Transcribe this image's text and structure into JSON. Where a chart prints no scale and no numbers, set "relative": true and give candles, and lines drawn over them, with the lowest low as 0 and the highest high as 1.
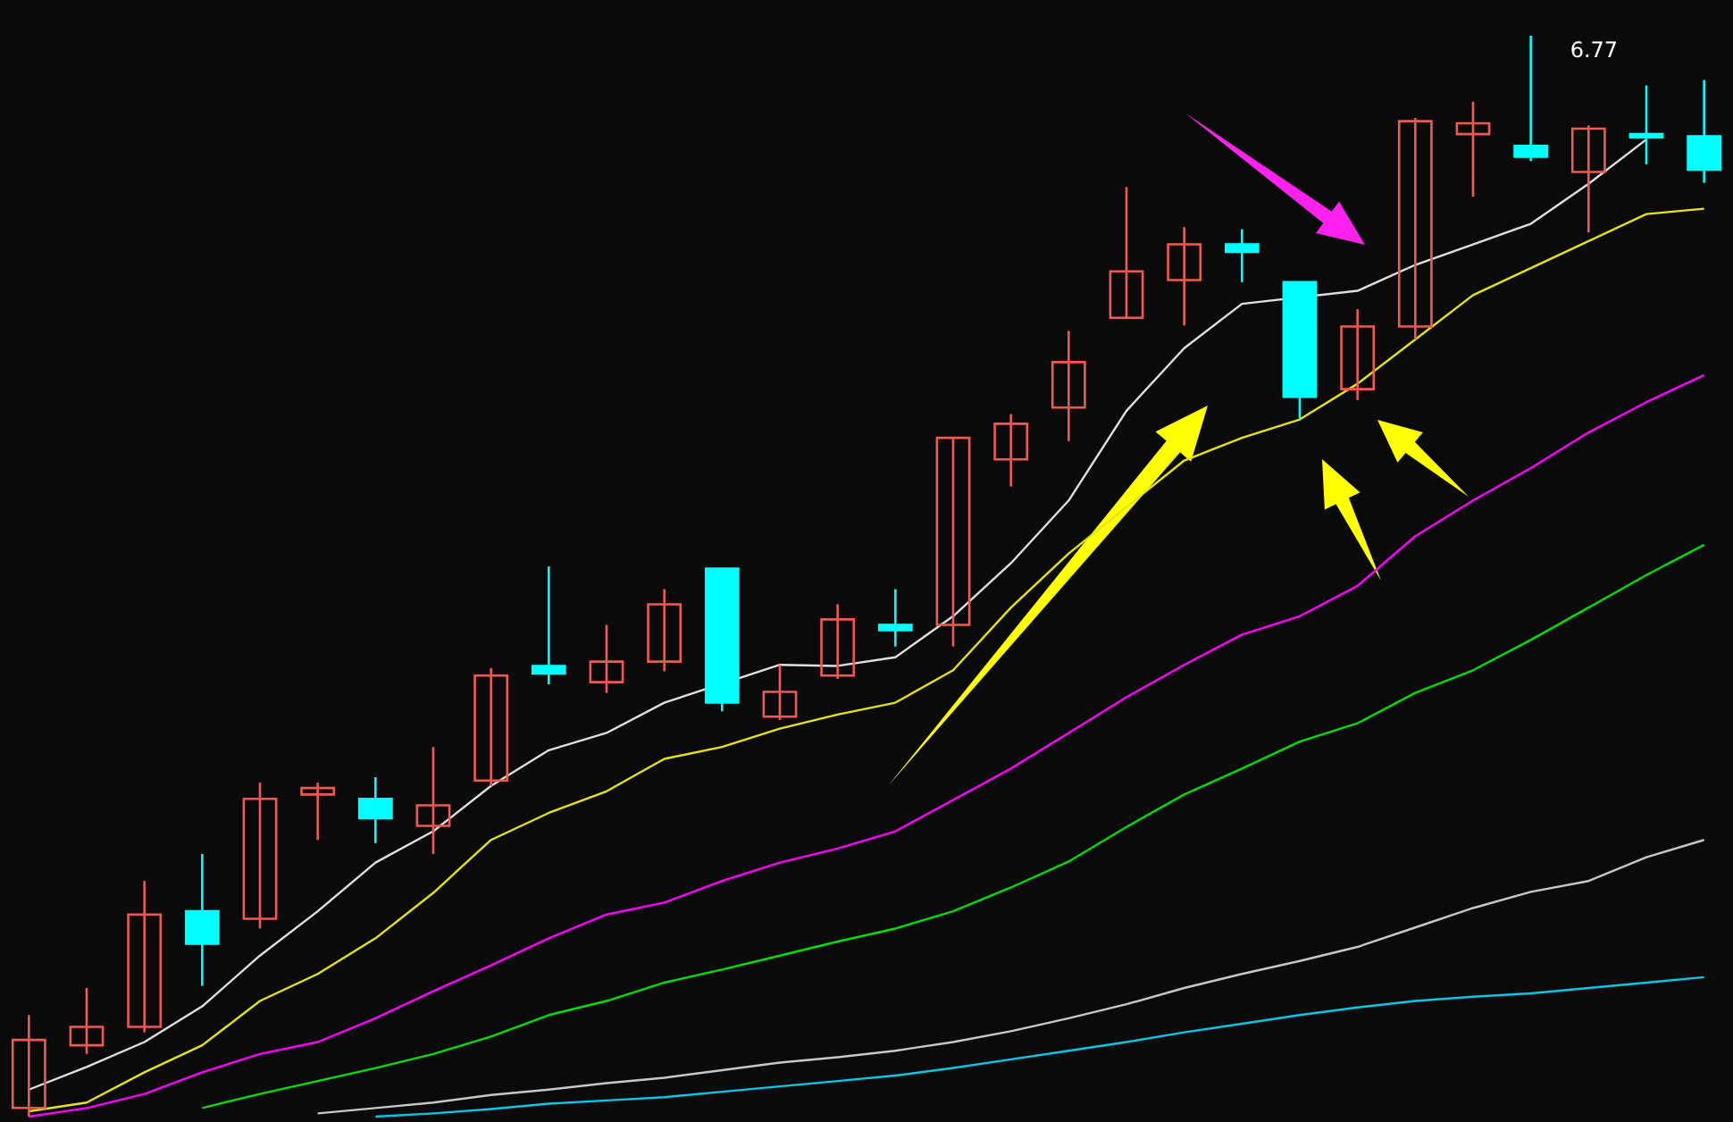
{
  "chart_data": {
    "type": "candlestick",
    "relative": true,
    "categories": [
      null,
      null,
      null,
      null,
      null,
      null,
      null,
      null,
      null,
      null,
      null,
      null,
      null,
      null,
      null,
      null,
      null,
      null,
      null,
      null,
      null,
      null,
      null,
      null,
      null,
      null,
      null,
      null,
      null,
      null
    ],
    "ohlc": [
      [
        0.008,
        0.094,
        0,
        0.071
      ],
      [
        0.066,
        0.119,
        0.058,
        0.083
      ],
      [
        0.083,
        0.218,
        0.078,
        0.187
      ],
      [
        0.19,
        0.243,
        0.121,
        0.16
      ],
      [
        0.183,
        0.309,
        0.174,
        0.294
      ],
      [
        0.298,
        0.309,
        0.256,
        0.304
      ],
      [
        0.294,
        0.314,
        0.253,
        0.276
      ],
      [
        0.269,
        0.342,
        0.243,
        0.288
      ],
      [
        0.311,
        0.415,
        0.306,
        0.408
      ],
      [
        0.417,
        0.509,
        0.4,
        0.41
      ],
      [
        0.402,
        0.455,
        0.392,
        0.421
      ],
      [
        0.421,
        0.488,
        0.412,
        0.474
      ],
      [
        0.507,
        0.507,
        0.375,
        0.383
      ],
      [
        0.37,
        0.418,
        0.367,
        0.393
      ],
      [
        0.408,
        0.474,
        0.405,
        0.46
      ],
      [
        0.455,
        0.488,
        0.435,
        0.45
      ],
      [
        0.455,
        0.628,
        0.435,
        0.628
      ],
      [
        0.608,
        0.65,
        0.583,
        0.641
      ],
      [
        0.656,
        0.727,
        0.625,
        0.698
      ],
      [
        0.739,
        0.86,
        0.739,
        0.782
      ],
      [
        0.774,
        0.823,
        0.732,
        0.807
      ],
      [
        0.807,
        0.821,
        0.772,
        0.8
      ],
      [
        0.772,
        0.772,
        0.646,
        0.666
      ],
      [
        0.673,
        0.747,
        0.663,
        0.731
      ],
      [
        0.731,
        0.924,
        0.719,
        0.921
      ],
      [
        0.909,
        0.939,
        0.851,
        0.919
      ],
      [
        0.898,
        1,
        0.884,
        0.888
      ],
      [
        0.874,
        0.917,
        0.818,
        0.914
      ],
      [
        0.909,
        0.954,
        0.881,
        0.906
      ],
      [
        0.907,
        0.959,
        0.864,
        0.876
      ]
    ],
    "colors": [
      "#f05a50",
      "#f05a50",
      "#f05a50",
      "#00ffff",
      "#f05a50",
      "#f05a50",
      "#00ffff",
      "#f05a50",
      "#f05a50",
      "#00ffff",
      "#f05a50",
      "#f05a50",
      "#00ffff",
      "#f05a50",
      "#f05a50",
      "#00ffff",
      "#f05a50",
      "#f05a50",
      "#f05a50",
      "#f05a50",
      "#f05a50",
      "#00ffff",
      "#00ffff",
      "#f05a50",
      "#f05a50",
      "#f05a50",
      "#00ffff",
      "#f05a50",
      "#00ffff",
      "#00ffff"
    ],
    "series": [
      {
        "type": "line",
        "color": "#e0e0e0",
        "values": [
          0.025,
          0.046,
          0.069,
          0.102,
          0.149,
          0.19,
          0.235,
          0.264,
          0.306,
          0.339,
          0.355,
          0.383,
          null,
          0.418,
          0.417,
          0.425,
          0.463,
          0.512,
          0.57,
          0.653,
          0.711,
          0.752,
          null,
          0.764,
          0.788,
          0.807,
          0.826,
          0.863,
          0.904,
          null
        ]
      },
      {
        "type": "line",
        "color": "#e6e600",
        "values": [
          0.005,
          0.013,
          0.041,
          0.066,
          0.107,
          0.132,
          0.165,
          0.207,
          0.256,
          0.281,
          0.301,
          0.331,
          0.342,
          0.359,
          0.372,
          0.383,
          0.413,
          0.471,
          0.521,
          null,
          0.607,
          0.628,
          0.645,
          0.678,
          0.719,
          0.76,
          0.785,
          0.81,
          0.835,
          0.84
        ]
      },
      {
        "type": "line",
        "color": "#ff00ff",
        "values": [
          0,
          0.008,
          0.021,
          0.041,
          0.058,
          0.069,
          0.091,
          0.116,
          0.14,
          0.165,
          0.187,
          0.198,
          0.218,
          0.235,
          0.248,
          0.264,
          0.293,
          0.322,
          0.355,
          0.388,
          0.418,
          0.446,
          0.463,
          0.491,
          0.537,
          0.57,
          0.6,
          0.633,
          0.661,
          0.686
        ]
      },
      {
        "type": "line",
        "color": "#00dd00",
        "values": [
          null,
          null,
          null,
          0.008,
          0.021,
          0.033,
          0.045,
          0.058,
          0.074,
          0.094,
          0.107,
          0.124,
          0.136,
          0.149,
          0.162,
          0.174,
          0.19,
          0.212,
          0.236,
          0.268,
          0.298,
          0.322,
          0.347,
          0.364,
          0.392,
          0.413,
          0.441,
          0.471,
          0.501,
          0.529
        ]
      },
      {
        "type": "line",
        "color": "#c8c8c8",
        "values": [
          null,
          null,
          null,
          null,
          null,
          0.003,
          0.008,
          0.013,
          0.02,
          0.025,
          0.031,
          0.036,
          0.043,
          0.05,
          0.055,
          0.061,
          0.069,
          0.079,
          0.091,
          0.104,
          0.119,
          0.132,
          0.144,
          0.157,
          0.175,
          0.193,
          0.208,
          0.218,
          0.24,
          0.256
        ]
      },
      {
        "type": "line",
        "color": "#00c8e6",
        "values": [
          null,
          null,
          null,
          null,
          null,
          null,
          0,
          0.003,
          0.007,
          0.012,
          0.015,
          0.018,
          0.023,
          0.028,
          0.033,
          0.038,
          0.045,
          0.053,
          0.061,
          0.069,
          0.078,
          0.086,
          0.094,
          0.101,
          0.107,
          0.111,
          0.114,
          0.119,
          0.124,
          0.129
        ]
      }
    ],
    "annotations": [
      "6.77"
    ]
  }
}
